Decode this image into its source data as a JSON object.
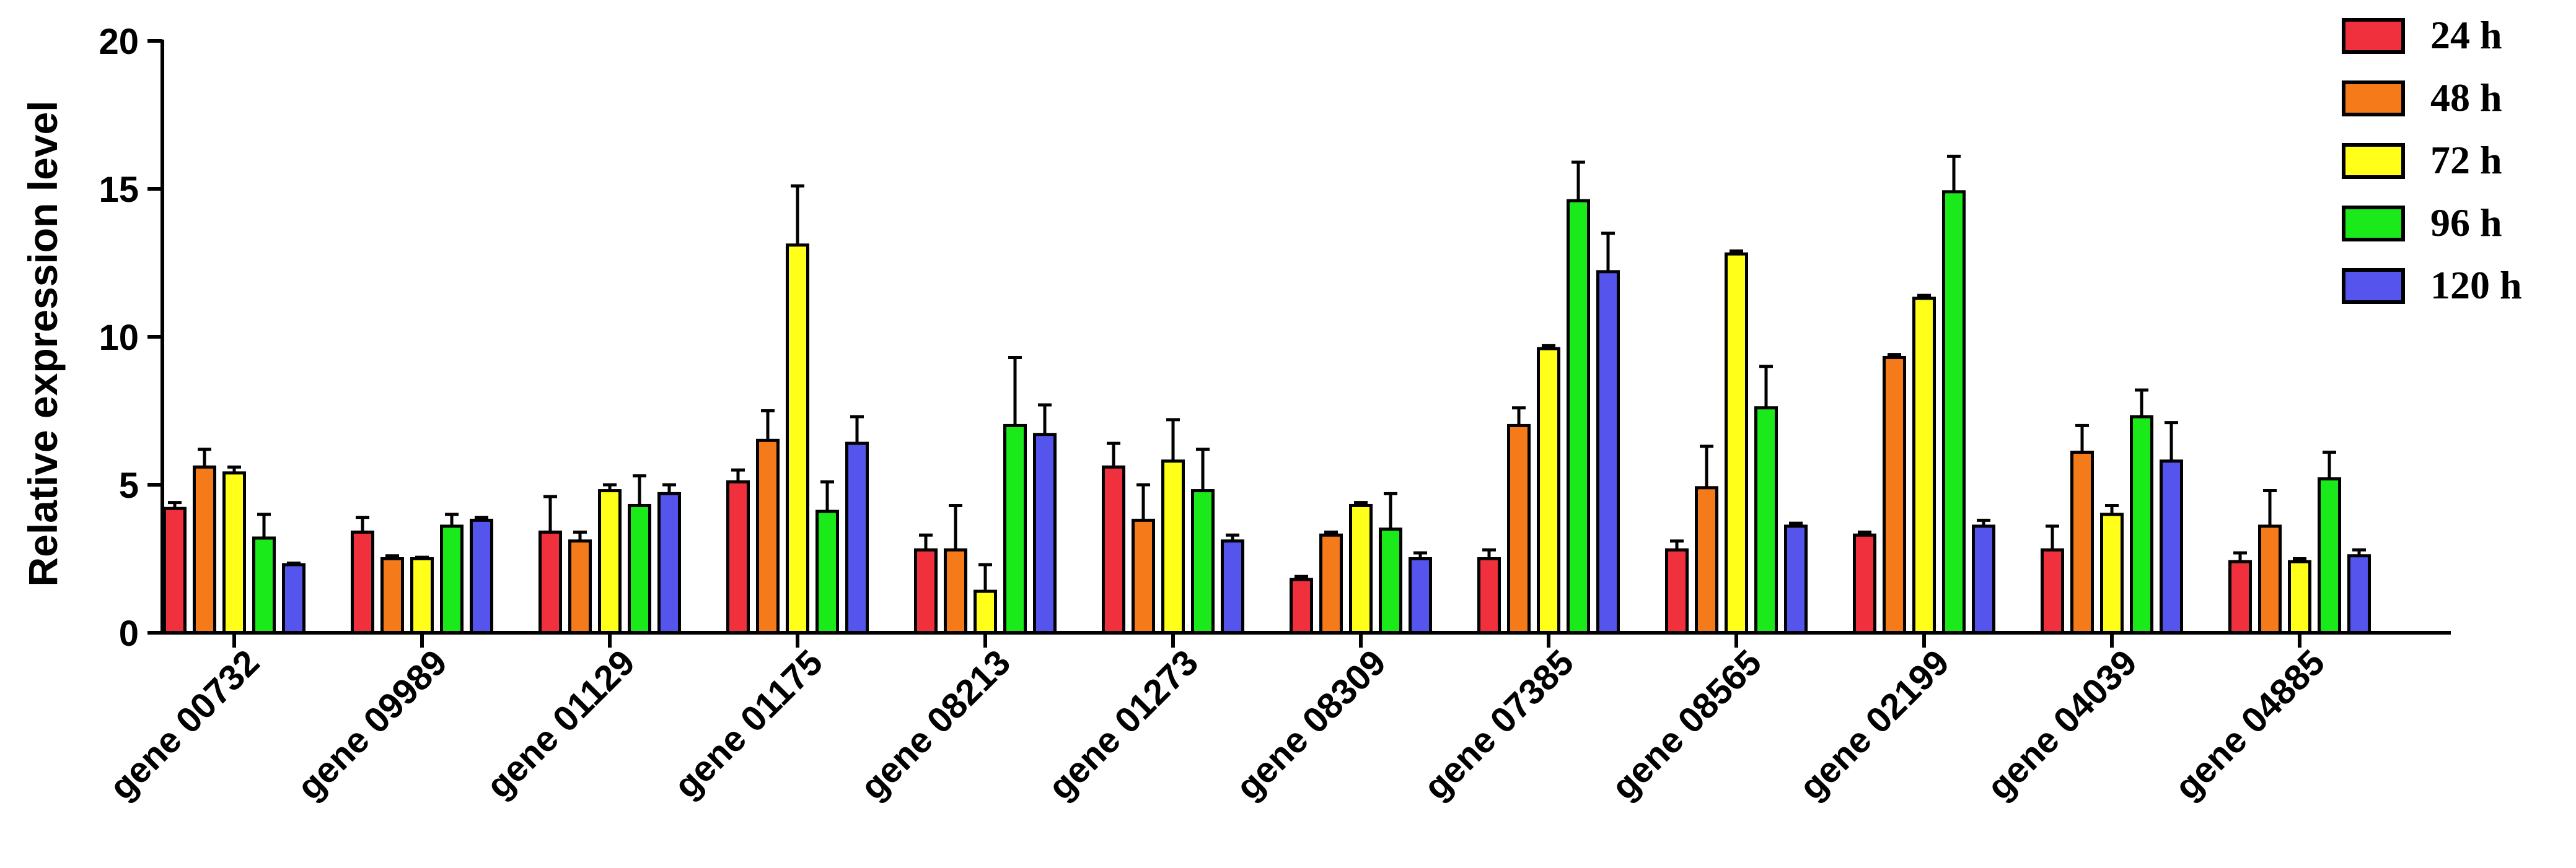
{
  "chart_data": {
    "type": "bar",
    "ylabel": "Relative expression level",
    "xlabel": "",
    "ylim": [
      0,
      20
    ],
    "yticks": [
      0,
      5,
      10,
      15,
      20
    ],
    "grid": false,
    "legend_position": "top-right",
    "error_bars": true,
    "categories": [
      "gene 00732",
      "gene 09989",
      "gene 01129",
      "gene 01175",
      "gene 08213",
      "gene 01273",
      "gene 08309",
      "gene 07385",
      "gene 08565",
      "gene 02199",
      "gene 04039",
      "gene 04885"
    ],
    "series": [
      {
        "name": "24 h",
        "color": "#f0303c",
        "values": [
          4.2,
          3.4,
          3.4,
          5.1,
          2.8,
          5.6,
          1.8,
          2.5,
          2.8,
          3.3,
          2.8,
          2.4
        ],
        "errors": [
          0.2,
          0.5,
          1.2,
          0.4,
          0.5,
          0.8,
          0.1,
          0.3,
          0.3,
          0.1,
          0.8,
          0.3
        ]
      },
      {
        "name": "48 h",
        "color": "#f57a1a",
        "values": [
          5.6,
          2.5,
          3.1,
          6.5,
          2.8,
          3.8,
          3.3,
          7.0,
          4.9,
          9.3,
          6.1,
          3.6
        ],
        "errors": [
          0.6,
          0.1,
          0.3,
          1.0,
          1.5,
          1.2,
          0.1,
          0.6,
          1.4,
          0.1,
          0.9,
          1.2
        ]
      },
      {
        "name": "72 h",
        "color": "#ffff1a",
        "values": [
          5.4,
          2.5,
          4.8,
          13.1,
          1.4,
          5.8,
          4.3,
          9.6,
          12.8,
          11.3,
          4.0,
          2.4
        ],
        "errors": [
          0.2,
          0.05,
          0.2,
          2.0,
          0.9,
          1.4,
          0.1,
          0.1,
          0.1,
          0.1,
          0.3,
          0.1
        ]
      },
      {
        "name": "96 h",
        "color": "#1aea1a",
        "values": [
          3.2,
          3.6,
          4.3,
          4.1,
          7.0,
          4.8,
          3.5,
          14.6,
          7.6,
          14.9,
          7.3,
          5.2
        ],
        "errors": [
          0.8,
          0.4,
          1.0,
          1.0,
          2.3,
          1.4,
          1.2,
          1.3,
          1.4,
          1.2,
          0.9,
          0.9
        ]
      },
      {
        "name": "120 h",
        "color": "#5555ee",
        "values": [
          2.3,
          3.8,
          4.7,
          6.4,
          6.7,
          3.1,
          2.5,
          12.2,
          3.6,
          3.6,
          5.8,
          2.6
        ],
        "errors": [
          0.05,
          0.1,
          0.3,
          0.9,
          1.0,
          0.2,
          0.2,
          1.3,
          0.1,
          0.2,
          1.3,
          0.2
        ]
      }
    ]
  }
}
